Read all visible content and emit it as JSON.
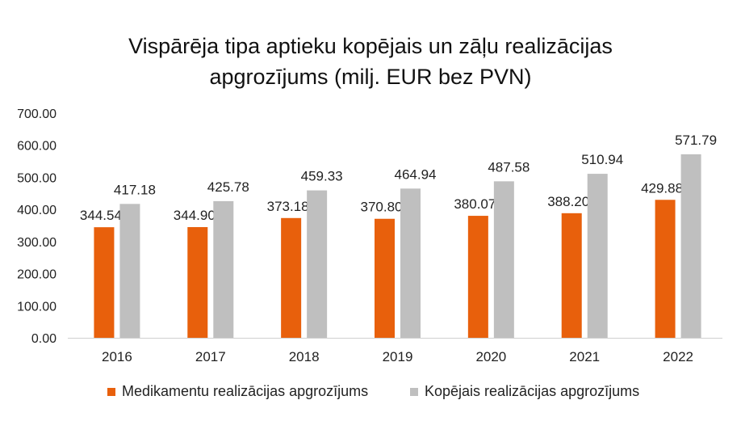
{
  "chart_data": {
    "type": "bar",
    "title_lines": [
      "Vispārēja tipa aptieku kopējais un zāļu realizācijas",
      "apgrozījums (milj. EUR bez PVN)"
    ],
    "categories": [
      "2016",
      "2017",
      "2018",
      "2019",
      "2020",
      "2021",
      "2022"
    ],
    "series": [
      {
        "name": "Medikamentu realizācijas apgrozījums",
        "color": "#E8600C",
        "values": [
          344.54,
          344.9,
          373.18,
          370.8,
          380.07,
          388.2,
          429.88
        ],
        "labels": [
          "344.54",
          "344.90",
          "373.18",
          "370.80",
          "380.07",
          "388.20",
          "429.88"
        ]
      },
      {
        "name": "Kopējais realizācijas apgrozījums",
        "color": "#BFBFBF",
        "values": [
          417.18,
          425.78,
          459.33,
          464.94,
          487.58,
          510.94,
          571.79
        ],
        "labels": [
          "417.18",
          "425.78",
          "459.33",
          "464.94",
          "487.58",
          "510.94",
          "571.79"
        ]
      }
    ],
    "yticks": [
      "0.00",
      "100.00",
      "200.00",
      "300.00",
      "400.00",
      "500.00",
      "600.00",
      "700.00"
    ],
    "ylim": [
      0,
      700
    ],
    "grid": false,
    "legend_position": "bottom"
  }
}
